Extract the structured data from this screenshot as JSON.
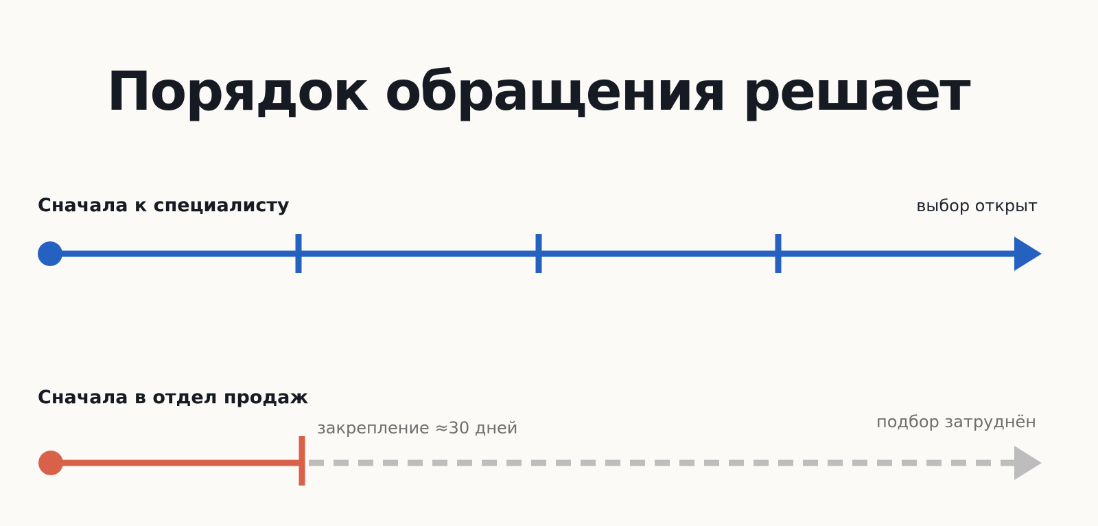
{
  "title": "Порядок обращения решает",
  "tracks": [
    {
      "label": "Сначала к специалисту",
      "end_note": "выбор открыт"
    },
    {
      "label": "Сначала в отдел продаж",
      "mid_note": "закрепление ≈30 дней",
      "end_note": "подбор затруднён"
    }
  ]
}
